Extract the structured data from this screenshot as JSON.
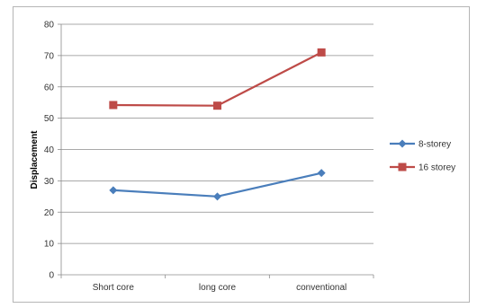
{
  "chart_data": {
    "type": "line",
    "categories": [
      "Short core",
      "long core",
      "conventional"
    ],
    "series": [
      {
        "name": "8-storey",
        "values": [
          27,
          25,
          32.5
        ],
        "color": "#4a7ebb",
        "marker": "diamond"
      },
      {
        "name": "16 storey",
        "values": [
          54.2,
          54,
          71
        ],
        "color": "#be4b48",
        "marker": "square"
      }
    ],
    "title": "",
    "xlabel": "",
    "ylabel": "Displacement",
    "ylim": [
      0,
      80
    ],
    "yticks": [
      0,
      10,
      20,
      30,
      40,
      50,
      60,
      70,
      80
    ],
    "grid": true,
    "legend_position": "right"
  }
}
